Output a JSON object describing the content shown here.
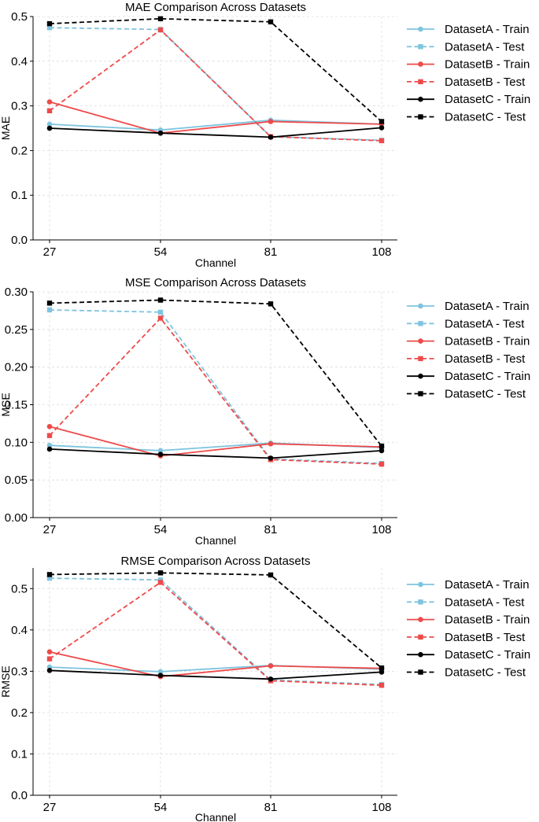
{
  "figure": {
    "x_values": [
      27,
      54,
      81,
      108
    ],
    "colors": {
      "DatasetA": "#7ec4df",
      "DatasetB": "#ee4a4a",
      "DatasetC": "#000000"
    },
    "legend_entries": [
      {
        "label": "DatasetA - Train",
        "dataset": "DatasetA",
        "style": "solid",
        "marker": "circle"
      },
      {
        "label": "DatasetA - Test",
        "dataset": "DatasetA",
        "style": "dashed",
        "marker": "square"
      },
      {
        "label": "DatasetB - Train",
        "dataset": "DatasetB",
        "style": "solid",
        "marker": "circle"
      },
      {
        "label": "DatasetB - Test",
        "dataset": "DatasetB",
        "style": "dashed",
        "marker": "square"
      },
      {
        "label": "DatasetC - Train",
        "dataset": "DatasetC",
        "style": "solid",
        "marker": "circle"
      },
      {
        "label": "DatasetC - Test",
        "dataset": "DatasetC",
        "style": "dashed",
        "marker": "square"
      }
    ]
  },
  "chart_data": [
    {
      "type": "line",
      "title": "MAE Comparison Across Datasets",
      "xlabel": "Channel",
      "ylabel": "MAE",
      "x": [
        27,
        54,
        81,
        108
      ],
      "ylim": [
        0,
        0.5
      ],
      "yticks": [
        0.0,
        0.1,
        0.2,
        0.3,
        0.4,
        0.5
      ],
      "ytick_labels": [
        "0.0",
        "0.1",
        "0.2",
        "0.3",
        "0.4",
        "0.5"
      ],
      "grid": true,
      "legend": "outside-right",
      "series": [
        {
          "name": "DatasetA - Train",
          "values": [
            0.259,
            0.246,
            0.268,
            0.259
          ]
        },
        {
          "name": "DatasetA - Test",
          "values": [
            0.475,
            0.471,
            0.231,
            0.223
          ]
        },
        {
          "name": "DatasetB - Train",
          "values": [
            0.309,
            0.239,
            0.265,
            0.259
          ]
        },
        {
          "name": "DatasetB - Test",
          "values": [
            0.289,
            0.47,
            0.231,
            0.222
          ]
        },
        {
          "name": "DatasetC - Train",
          "values": [
            0.25,
            0.239,
            0.23,
            0.251
          ]
        },
        {
          "name": "DatasetC - Test",
          "values": [
            0.484,
            0.495,
            0.488,
            0.265
          ]
        }
      ]
    },
    {
      "type": "line",
      "title": "MSE Comparison Across Datasets",
      "xlabel": "Channel",
      "ylabel": "MSE",
      "x": [
        27,
        54,
        81,
        108
      ],
      "ylim": [
        0,
        0.3
      ],
      "yticks": [
        0.0,
        0.05,
        0.1,
        0.15,
        0.2,
        0.25,
        0.3
      ],
      "ytick_labels": [
        "0.00",
        "0.05",
        "0.10",
        "0.15",
        "0.20",
        "0.25",
        "0.30"
      ],
      "grid": true,
      "legend": "outside-right",
      "series": [
        {
          "name": "DatasetA - Train",
          "values": [
            0.096,
            0.089,
            0.099,
            0.093
          ]
        },
        {
          "name": "DatasetA - Test",
          "values": [
            0.276,
            0.273,
            0.078,
            0.072
          ]
        },
        {
          "name": "DatasetB - Train",
          "values": [
            0.121,
            0.082,
            0.098,
            0.094
          ]
        },
        {
          "name": "DatasetB - Test",
          "values": [
            0.109,
            0.265,
            0.077,
            0.071
          ]
        },
        {
          "name": "DatasetC - Train",
          "values": [
            0.091,
            0.084,
            0.079,
            0.089
          ]
        },
        {
          "name": "DatasetC - Test",
          "values": [
            0.285,
            0.289,
            0.284,
            0.095
          ]
        }
      ]
    },
    {
      "type": "line",
      "title": "RMSE Comparison Across Datasets",
      "xlabel": "Channel",
      "ylabel": "RMSE",
      "x": [
        27,
        54,
        81,
        108
      ],
      "ylim": [
        0,
        0.55
      ],
      "yticks": [
        0.0,
        0.1,
        0.2,
        0.3,
        0.4,
        0.5
      ],
      "ytick_labels": [
        "0.0",
        "0.1",
        "0.2",
        "0.3",
        "0.4",
        "0.5"
      ],
      "grid": true,
      "legend": "outside-right",
      "series": [
        {
          "name": "DatasetA - Train",
          "values": [
            0.31,
            0.299,
            0.314,
            0.305
          ]
        },
        {
          "name": "DatasetA - Test",
          "values": [
            0.525,
            0.521,
            0.279,
            0.268
          ]
        },
        {
          "name": "DatasetB - Train",
          "values": [
            0.347,
            0.287,
            0.313,
            0.307
          ]
        },
        {
          "name": "DatasetB - Test",
          "values": [
            0.33,
            0.515,
            0.277,
            0.266
          ]
        },
        {
          "name": "DatasetC - Train",
          "values": [
            0.302,
            0.29,
            0.281,
            0.298
          ]
        },
        {
          "name": "DatasetC - Test",
          "values": [
            0.534,
            0.538,
            0.533,
            0.308
          ]
        }
      ]
    }
  ]
}
